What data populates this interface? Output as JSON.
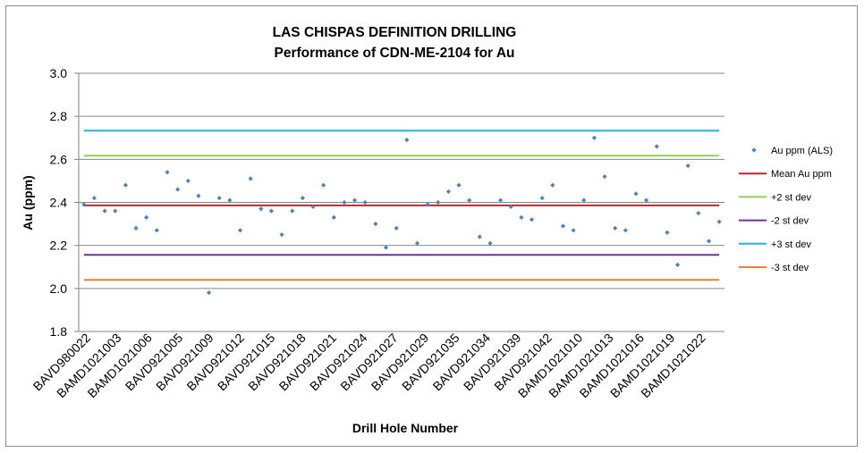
{
  "chart_data": {
    "type": "scatter",
    "title": "LAS CHISPAS DEFINITION DRILLING",
    "subtitle": "Performance of CDN-ME-2104 for Au",
    "xlabel": "Drill Hole Number",
    "ylabel": "Au (ppm)",
    "ylim": [
      1.8,
      3.0
    ],
    "y_ticks": [
      "1.8",
      "2.0",
      "2.2",
      "2.4",
      "2.6",
      "2.8",
      "3.0"
    ],
    "y_tick_values": [
      1.8,
      2.0,
      2.2,
      2.4,
      2.6,
      2.8,
      3.0
    ],
    "grid": "horizontal",
    "legend_position": "right",
    "x_tick_labels": [
      "BAVD980022",
      "BAMD1021003",
      "BAMD1021006",
      "BAVD921005",
      "BAVD921009",
      "BAVD921012",
      "BAVD921015",
      "BAVD921018",
      "BAVD921021",
      "BAVD921024",
      "BAVD921027",
      "BAVD921029",
      "BAVD921035",
      "BAVD921034",
      "BAVD921039",
      "BAVD921042",
      "BAMD1021010",
      "BAMD1021013",
      "BAMD1021016",
      "BAMD1021019",
      "BAMD1021022"
    ],
    "series": [
      {
        "name": "Au ppm (ALS)",
        "kind": "points",
        "color": "#4f81bd",
        "values": [
          2.39,
          2.42,
          2.36,
          2.36,
          2.48,
          2.28,
          2.33,
          2.27,
          2.54,
          2.46,
          2.5,
          2.43,
          1.98,
          2.42,
          2.41,
          2.27,
          2.51,
          2.37,
          2.36,
          2.25,
          2.36,
          2.42,
          2.38,
          2.48,
          2.33,
          2.4,
          2.41,
          2.4,
          2.3,
          2.19,
          2.28,
          2.69,
          2.21,
          2.39,
          2.4,
          2.45,
          2.48,
          2.41,
          2.24,
          2.21,
          2.41,
          2.38,
          2.33,
          2.32,
          2.42,
          2.48,
          2.29,
          2.27,
          2.41,
          2.7,
          2.52,
          2.28,
          2.27,
          2.44,
          2.41,
          2.66,
          2.26,
          2.11,
          2.57,
          2.35,
          2.22,
          2.31
        ]
      },
      {
        "name": "Mean Au ppm",
        "kind": "hline",
        "value": 2.386,
        "color": "#c0262d"
      },
      {
        "name": "+2 st dev",
        "kind": "hline",
        "value": 2.617,
        "color": "#92d050"
      },
      {
        "name": "-2 st dev",
        "kind": "hline",
        "value": 2.156,
        "color": "#7030a0"
      },
      {
        "name": "+3 st dev",
        "kind": "hline",
        "value": 2.733,
        "color": "#1fb3e6"
      },
      {
        "name": "-3 st dev",
        "kind": "hline",
        "value": 2.04,
        "color": "#f07f2f"
      }
    ]
  }
}
